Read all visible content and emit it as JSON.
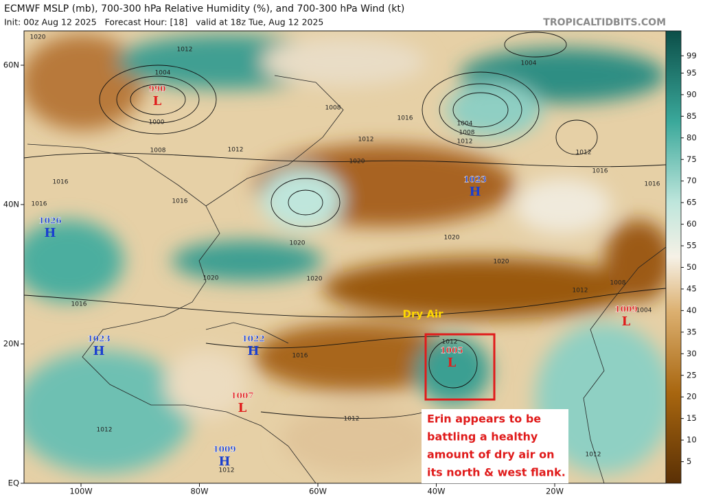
{
  "header": {
    "title": "ECMWF MSLP (mb), 700-300 hPa Relative Humidity (%), and 700-300 hPa Wind (kt)",
    "subtitle": "Init: 00z Aug 12 2025   Forecast Hour: [18]   valid at 18z Tue, Aug 12 2025",
    "site": "TROPICALTIDBITS.COM"
  },
  "map": {
    "lat_ticks": [
      {
        "value": 60,
        "label": "60N"
      },
      {
        "value": 40,
        "label": "40N"
      },
      {
        "value": 20,
        "label": "20N"
      },
      {
        "value": 0,
        "label": "EQ"
      }
    ],
    "lon_ticks": [
      {
        "value": -100,
        "label": "100W"
      },
      {
        "value": -80,
        "label": "80W"
      },
      {
        "value": -60,
        "label": "60W"
      },
      {
        "value": -40,
        "label": "40W"
      },
      {
        "value": -20,
        "label": "20W"
      }
    ],
    "centers": [
      {
        "pressure": "990",
        "letter": "L"
      },
      {
        "pressure": "1023",
        "letter": "H"
      },
      {
        "pressure": "1026",
        "letter": "H"
      },
      {
        "pressure": "1023",
        "letter": "H"
      },
      {
        "pressure": "1022",
        "letter": "H"
      },
      {
        "pressure": "1007",
        "letter": "L"
      },
      {
        "pressure": "1005",
        "letter": "L"
      },
      {
        "pressure": "1009",
        "letter": "L"
      },
      {
        "pressure": "1009",
        "letter": "H"
      }
    ],
    "isobar_labels": [
      "1020",
      "1012",
      "1004",
      "1000",
      "1008",
      "1012",
      "1008",
      "1004",
      "1008",
      "1012",
      "1004",
      "1012",
      "1016",
      "1016",
      "1012",
      "1020",
      "1016",
      "1016",
      "1016",
      "1020",
      "1020",
      "1020",
      "1020",
      "1020",
      "1012",
      "1008",
      "1004",
      "1016",
      "1012",
      "1012",
      "1012",
      "1012",
      "1012",
      "1016",
      "1016"
    ],
    "annotation": "Dry Air",
    "callout": [
      "Erin appears to be",
      "battling a healthy",
      "amount of dry air on",
      "its north & west flank."
    ]
  },
  "colorbar": {
    "lim": [
      0,
      100
    ],
    "ticks": [
      5,
      10,
      15,
      20,
      25,
      30,
      35,
      40,
      45,
      50,
      55,
      60,
      65,
      70,
      75,
      80,
      85,
      90,
      95,
      99
    ]
  }
}
